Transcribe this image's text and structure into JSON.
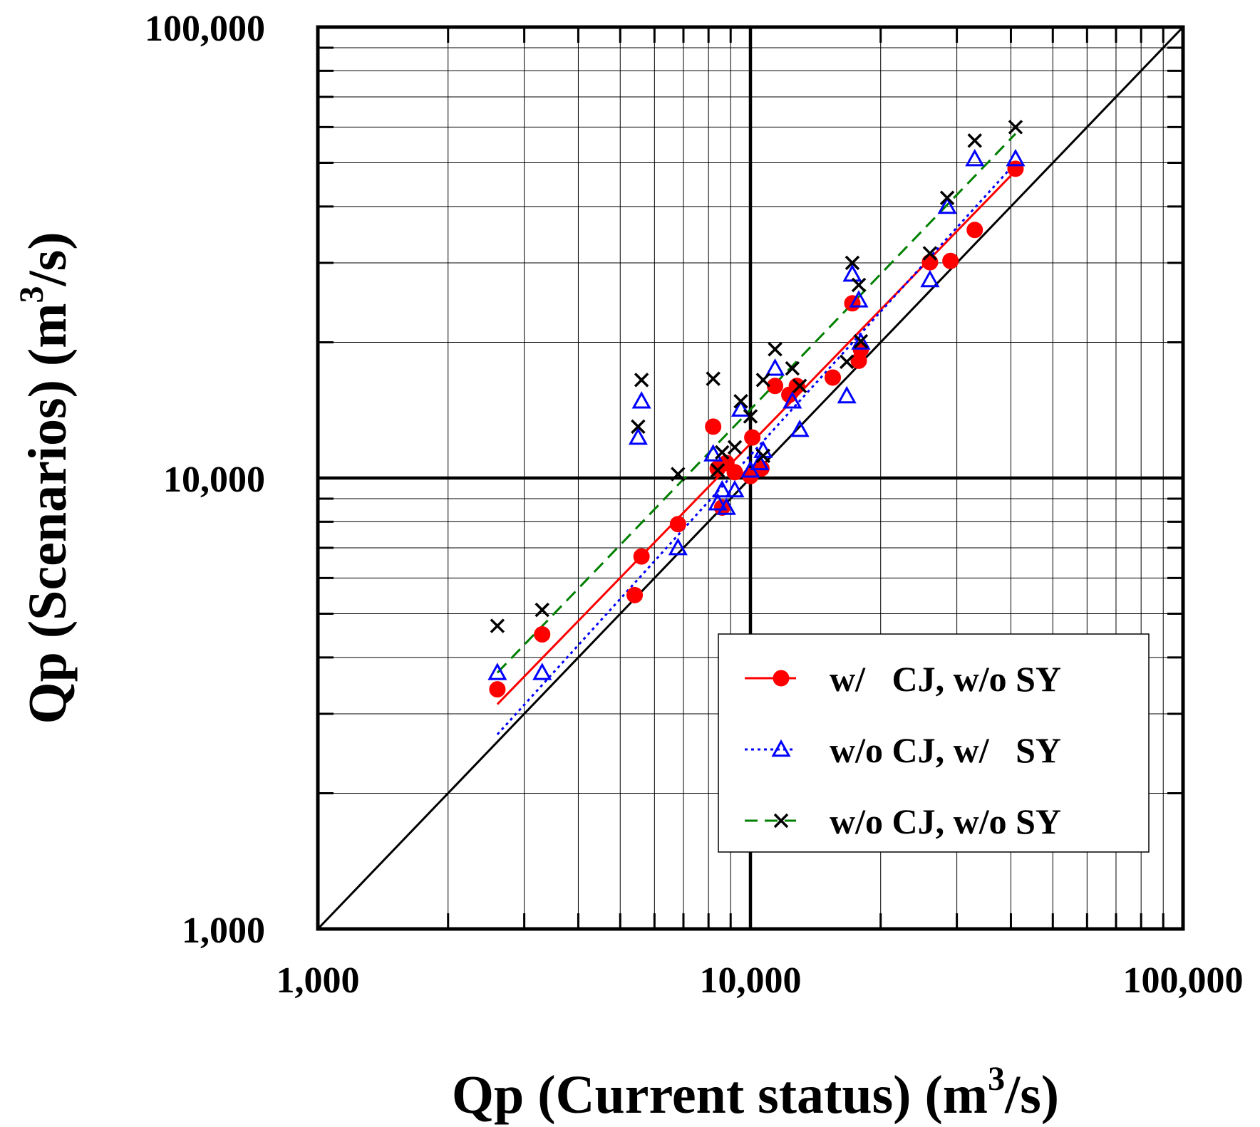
{
  "chart_data": {
    "type": "scatter",
    "x_scale": "log",
    "y_scale": "log",
    "xlim": [
      1000,
      100000
    ],
    "ylim": [
      1000,
      100000
    ],
    "xlabel": "Qp (Current status) (m",
    "xlabel_sup": "3",
    "xlabel_tail": "/s)",
    "ylabel": "Qp (Scenarios) (m",
    "ylabel_sup": "3",
    "ylabel_tail": "/s)",
    "x_tick_labels": [
      {
        "value": 1000,
        "label": "1,000"
      },
      {
        "value": 10000,
        "label": "10,000"
      },
      {
        "value": 100000,
        "label": "100,000"
      }
    ],
    "y_tick_labels": [
      {
        "value": 1000,
        "label": "1,000"
      },
      {
        "value": 10000,
        "label": "10,000"
      },
      {
        "value": 100000,
        "label": "100,000"
      }
    ],
    "grid": true,
    "reference_line": {
      "name": "1:1 line",
      "from": [
        1000,
        1000
      ],
      "to": [
        100000,
        100000
      ],
      "color": "#000000"
    },
    "legend_position": "bottom-right",
    "series": [
      {
        "name": "w/   CJ, w/o SY",
        "marker": "circle",
        "line_style": "solid",
        "color": "#ff0000",
        "marker_color": "#ff0000",
        "points": [
          [
            2600,
            3400
          ],
          [
            3300,
            4500
          ],
          [
            5400,
            5500
          ],
          [
            5600,
            6700
          ],
          [
            6800,
            7900
          ],
          [
            8200,
            13000
          ],
          [
            8400,
            10500
          ],
          [
            8600,
            8600
          ],
          [
            8800,
            10800
          ],
          [
            9200,
            10300
          ],
          [
            10000,
            10100
          ],
          [
            10100,
            12300
          ],
          [
            10600,
            10500
          ],
          [
            11400,
            16000
          ],
          [
            12300,
            15300
          ],
          [
            12800,
            16000
          ],
          [
            15500,
            16700
          ],
          [
            17200,
            24400
          ],
          [
            17800,
            18200
          ],
          [
            18000,
            19300
          ],
          [
            26000,
            30100
          ],
          [
            29000,
            30300
          ],
          [
            33000,
            35500
          ],
          [
            41000,
            48500
          ]
        ],
        "fit_line": [
          [
            2600,
            3150
          ],
          [
            41000,
            48000
          ]
        ]
      },
      {
        "name": "w/o CJ, w/   SY",
        "marker": "triangle",
        "line_style": "dotted",
        "color": "#0000ff",
        "marker_color": "#0000ff",
        "points": [
          [
            2600,
            3700
          ],
          [
            3300,
            3700
          ],
          [
            5500,
            12300
          ],
          [
            5600,
            14800
          ],
          [
            6800,
            7000
          ],
          [
            8200,
            11300
          ],
          [
            8400,
            8800
          ],
          [
            8600,
            9400
          ],
          [
            8800,
            8600
          ],
          [
            9200,
            9400
          ],
          [
            9500,
            14200
          ],
          [
            10000,
            10400
          ],
          [
            10500,
            10800
          ],
          [
            10700,
            11500
          ],
          [
            11400,
            17500
          ],
          [
            12500,
            14800
          ],
          [
            13000,
            12800
          ],
          [
            16700,
            15200
          ],
          [
            17200,
            28300
          ],
          [
            17800,
            24800
          ],
          [
            18000,
            20000
          ],
          [
            26000,
            27500
          ],
          [
            28500,
            40000
          ],
          [
            33000,
            51000
          ],
          [
            41000,
            51000
          ]
        ],
        "fit_line": [
          [
            2600,
            2700
          ],
          [
            41000,
            50000
          ]
        ]
      },
      {
        "name": "w/o CJ, w/o SY",
        "marker": "x",
        "line_style": "dashed",
        "color": "#008000",
        "marker_color": "#000000",
        "points": [
          [
            2600,
            4700
          ],
          [
            3300,
            5100
          ],
          [
            5500,
            13000
          ],
          [
            5600,
            16500
          ],
          [
            6800,
            10200
          ],
          [
            8200,
            16600
          ],
          [
            8400,
            10400
          ],
          [
            8600,
            11400
          ],
          [
            9200,
            11700
          ],
          [
            9500,
            14800
          ],
          [
            10000,
            13700
          ],
          [
            10700,
            16500
          ],
          [
            10700,
            11200
          ],
          [
            11400,
            19300
          ],
          [
            12500,
            17500
          ],
          [
            13000,
            16000
          ],
          [
            16700,
            18100
          ],
          [
            17200,
            30000
          ],
          [
            17800,
            26800
          ],
          [
            18000,
            20100
          ],
          [
            26000,
            31500
          ],
          [
            28500,
            41800
          ],
          [
            33000,
            56000
          ],
          [
            41000,
            60000
          ]
        ],
        "fit_line": [
          [
            2600,
            3700
          ],
          [
            41000,
            58000
          ]
        ]
      }
    ]
  }
}
